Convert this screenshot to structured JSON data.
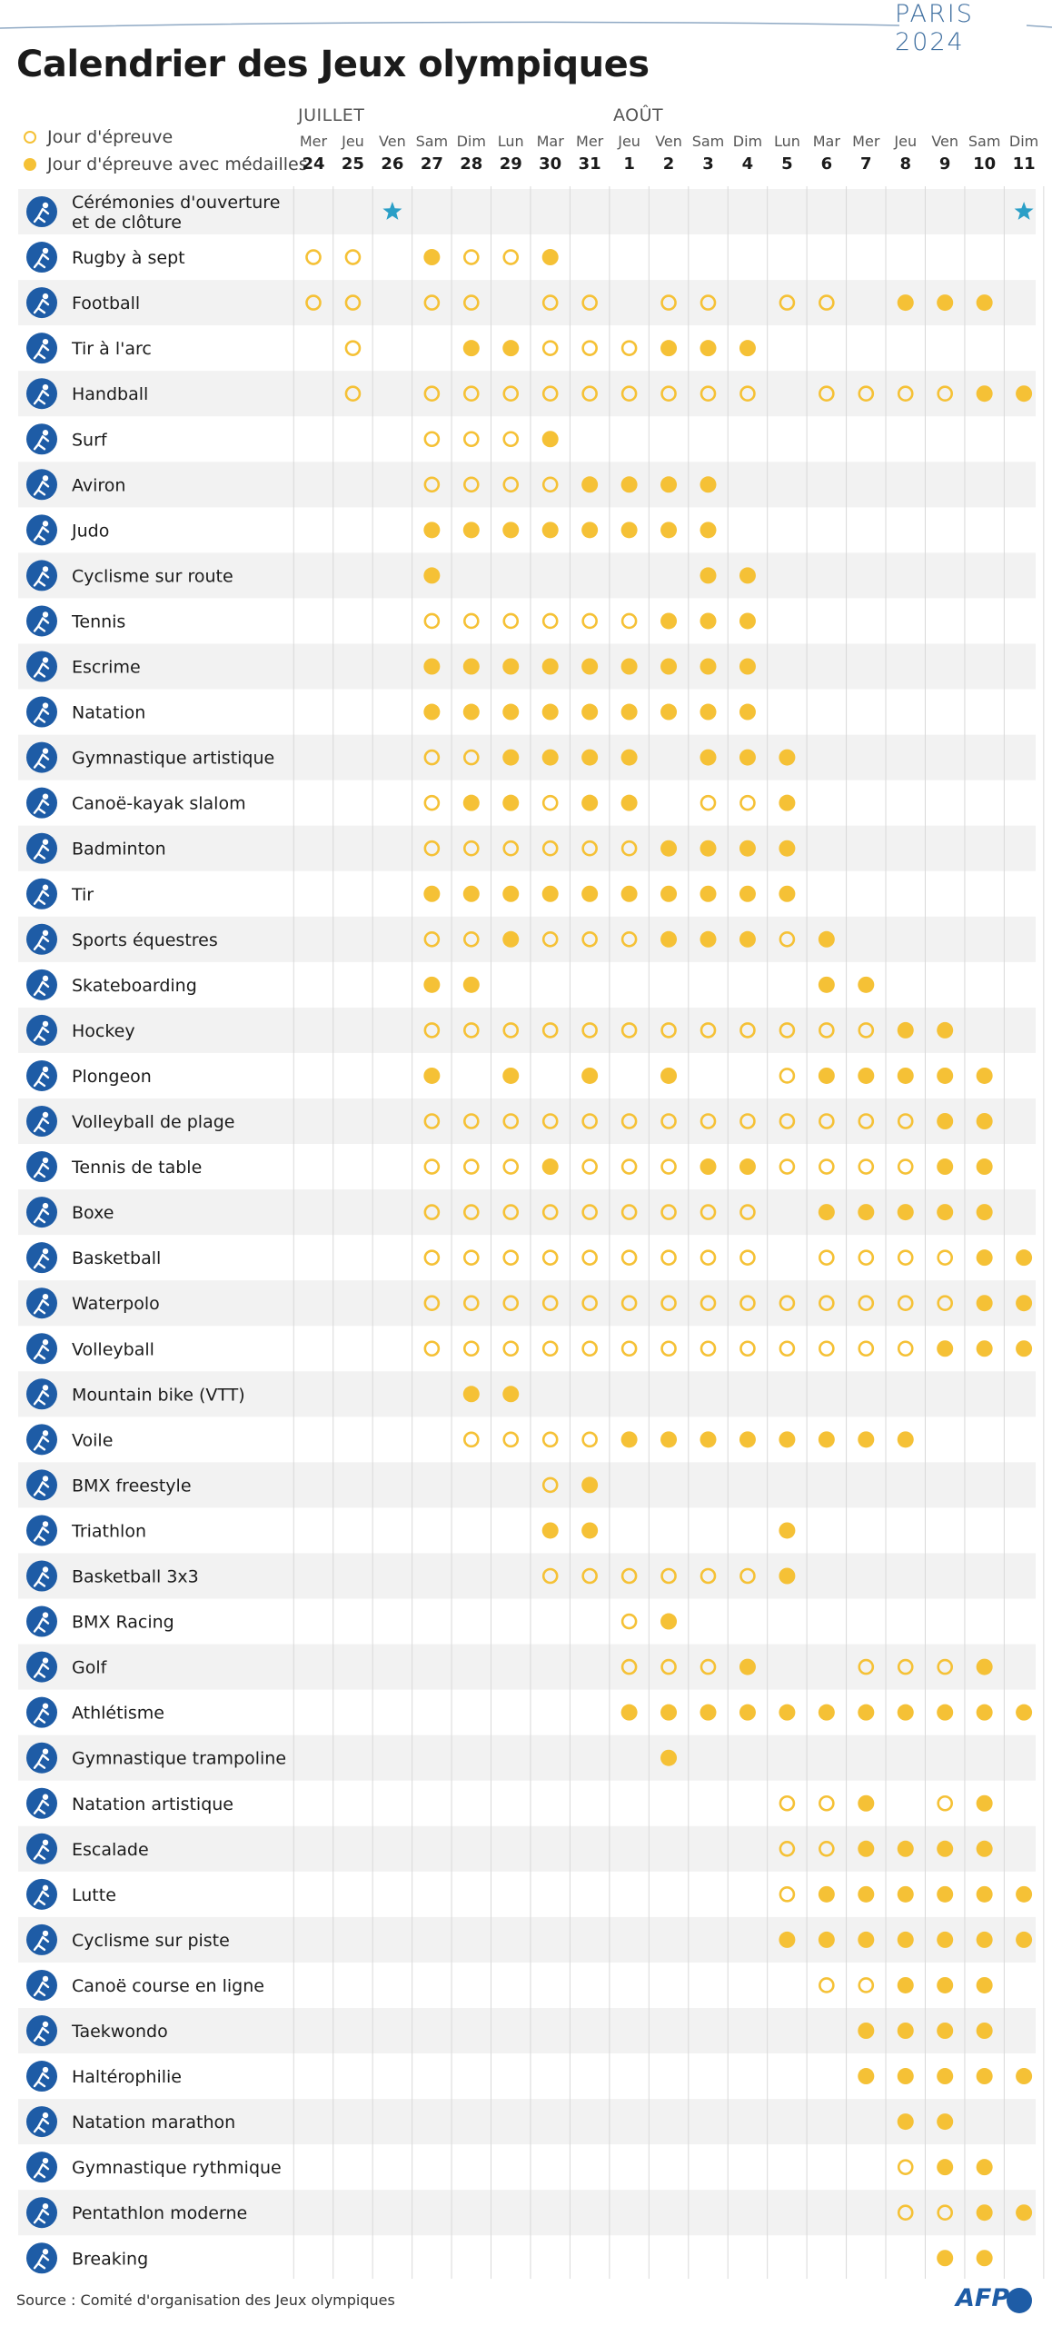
{
  "brand": "PARIS 2024",
  "title": "Calendrier des Jeux olympiques",
  "legend": {
    "event_day": "Jour d'épreuve",
    "medal_day": "Jour d'épreuve avec médailles"
  },
  "months": {
    "july": "JUILLET",
    "august": "AOÛT"
  },
  "source": "Source : Comité d'organisation des Jeux olympiques",
  "logo_text": "AFP",
  "colors": {
    "medal": "#f5c136",
    "star": "#2a9fc7",
    "icon": "#1e5ca6",
    "stripe": "#f2f2f2",
    "grid": "#d9d9d9"
  },
  "chart_data": {
    "type": "table",
    "encoding": {
      "0": "no event",
      "1": "event day (open circle)",
      "2": "medal day (filled circle)",
      "3": "ceremony (star)"
    },
    "days": [
      {
        "weekday": "Mer",
        "date": "24"
      },
      {
        "weekday": "Jeu",
        "date": "25"
      },
      {
        "weekday": "Ven",
        "date": "26"
      },
      {
        "weekday": "Sam",
        "date": "27"
      },
      {
        "weekday": "Dim",
        "date": "28"
      },
      {
        "weekday": "Lun",
        "date": "29"
      },
      {
        "weekday": "Mar",
        "date": "30"
      },
      {
        "weekday": "Mer",
        "date": "31"
      },
      {
        "weekday": "Jeu",
        "date": "1"
      },
      {
        "weekday": "Ven",
        "date": "2"
      },
      {
        "weekday": "Sam",
        "date": "3"
      },
      {
        "weekday": "Dim",
        "date": "4"
      },
      {
        "weekday": "Lun",
        "date": "5"
      },
      {
        "weekday": "Mar",
        "date": "6"
      },
      {
        "weekday": "Mer",
        "date": "7"
      },
      {
        "weekday": "Jeu",
        "date": "8"
      },
      {
        "weekday": "Ven",
        "date": "9"
      },
      {
        "weekday": "Sam",
        "date": "10"
      },
      {
        "weekday": "Dim",
        "date": "11"
      }
    ],
    "sports": [
      {
        "name": "Cérémonies d'ouverture et de clôture",
        "icon": "ceremony-icon",
        "schedule": [
          0,
          0,
          3,
          0,
          0,
          0,
          0,
          0,
          0,
          0,
          0,
          0,
          0,
          0,
          0,
          0,
          0,
          0,
          3
        ]
      },
      {
        "name": "Rugby à sept",
        "icon": "rugby-icon",
        "schedule": [
          1,
          1,
          0,
          2,
          1,
          1,
          2,
          0,
          0,
          0,
          0,
          0,
          0,
          0,
          0,
          0,
          0,
          0,
          0
        ]
      },
      {
        "name": "Football",
        "icon": "football-icon",
        "schedule": [
          1,
          1,
          0,
          1,
          1,
          0,
          1,
          1,
          0,
          1,
          1,
          0,
          1,
          1,
          0,
          2,
          2,
          2,
          0
        ]
      },
      {
        "name": "Tir à l'arc",
        "icon": "archery-icon",
        "schedule": [
          0,
          1,
          0,
          0,
          2,
          2,
          1,
          1,
          1,
          2,
          2,
          2,
          0,
          0,
          0,
          0,
          0,
          0,
          0
        ]
      },
      {
        "name": "Handball",
        "icon": "handball-icon",
        "schedule": [
          0,
          1,
          0,
          1,
          1,
          1,
          1,
          1,
          1,
          1,
          1,
          1,
          0,
          1,
          1,
          1,
          1,
          2,
          2
        ]
      },
      {
        "name": "Surf",
        "icon": "surf-icon",
        "schedule": [
          0,
          0,
          0,
          1,
          1,
          1,
          2,
          0,
          0,
          0,
          0,
          0,
          0,
          0,
          0,
          0,
          0,
          0,
          0
        ]
      },
      {
        "name": "Aviron",
        "icon": "rowing-icon",
        "schedule": [
          0,
          0,
          0,
          1,
          1,
          1,
          1,
          2,
          2,
          2,
          2,
          0,
          0,
          0,
          0,
          0,
          0,
          0,
          0
        ]
      },
      {
        "name": "Judo",
        "icon": "judo-icon",
        "schedule": [
          0,
          0,
          0,
          2,
          2,
          2,
          2,
          2,
          2,
          2,
          2,
          0,
          0,
          0,
          0,
          0,
          0,
          0,
          0
        ]
      },
      {
        "name": "Cyclisme sur route",
        "icon": "road-cycling-icon",
        "schedule": [
          0,
          0,
          0,
          2,
          0,
          0,
          0,
          0,
          0,
          0,
          2,
          2,
          0,
          0,
          0,
          0,
          0,
          0,
          0
        ]
      },
      {
        "name": "Tennis",
        "icon": "tennis-icon",
        "schedule": [
          0,
          0,
          0,
          1,
          1,
          1,
          1,
          1,
          1,
          2,
          2,
          2,
          0,
          0,
          0,
          0,
          0,
          0,
          0
        ]
      },
      {
        "name": "Escrime",
        "icon": "fencing-icon",
        "schedule": [
          0,
          0,
          0,
          2,
          2,
          2,
          2,
          2,
          2,
          2,
          2,
          2,
          0,
          0,
          0,
          0,
          0,
          0,
          0
        ]
      },
      {
        "name": "Natation",
        "icon": "swimming-icon",
        "schedule": [
          0,
          0,
          0,
          2,
          2,
          2,
          2,
          2,
          2,
          2,
          2,
          2,
          0,
          0,
          0,
          0,
          0,
          0,
          0
        ]
      },
      {
        "name": "Gymnastique artistique",
        "icon": "artistic-gymnastics-icon",
        "schedule": [
          0,
          0,
          0,
          1,
          1,
          2,
          2,
          2,
          2,
          0,
          2,
          2,
          2,
          0,
          0,
          0,
          0,
          0,
          0
        ]
      },
      {
        "name": "Canoë-kayak slalom",
        "icon": "canoe-slalom-icon",
        "schedule": [
          0,
          0,
          0,
          1,
          2,
          2,
          1,
          2,
          2,
          0,
          1,
          1,
          2,
          0,
          0,
          0,
          0,
          0,
          0
        ]
      },
      {
        "name": "Badminton",
        "icon": "badminton-icon",
        "schedule": [
          0,
          0,
          0,
          1,
          1,
          1,
          1,
          1,
          1,
          2,
          2,
          2,
          2,
          0,
          0,
          0,
          0,
          0,
          0
        ]
      },
      {
        "name": "Tir",
        "icon": "shooting-icon",
        "schedule": [
          0,
          0,
          0,
          2,
          2,
          2,
          2,
          2,
          2,
          2,
          2,
          2,
          2,
          0,
          0,
          0,
          0,
          0,
          0
        ]
      },
      {
        "name": "Sports équestres",
        "icon": "equestrian-icon",
        "schedule": [
          0,
          0,
          0,
          1,
          1,
          2,
          1,
          1,
          1,
          2,
          2,
          2,
          1,
          2,
          0,
          0,
          0,
          0,
          0
        ]
      },
      {
        "name": "Skateboarding",
        "icon": "skateboarding-icon",
        "schedule": [
          0,
          0,
          0,
          2,
          2,
          0,
          0,
          0,
          0,
          0,
          0,
          0,
          0,
          2,
          2,
          0,
          0,
          0,
          0
        ]
      },
      {
        "name": "Hockey",
        "icon": "hockey-icon",
        "schedule": [
          0,
          0,
          0,
          1,
          1,
          1,
          1,
          1,
          1,
          1,
          1,
          1,
          1,
          1,
          1,
          2,
          2,
          0,
          0
        ]
      },
      {
        "name": "Plongeon",
        "icon": "diving-icon",
        "schedule": [
          0,
          0,
          0,
          2,
          0,
          2,
          0,
          2,
          0,
          2,
          0,
          0,
          1,
          2,
          2,
          2,
          2,
          2,
          0
        ]
      },
      {
        "name": "Volleyball de plage",
        "icon": "beach-volleyball-icon",
        "schedule": [
          0,
          0,
          0,
          1,
          1,
          1,
          1,
          1,
          1,
          1,
          1,
          1,
          1,
          1,
          1,
          1,
          2,
          2,
          0
        ]
      },
      {
        "name": "Tennis de table",
        "icon": "table-tennis-icon",
        "schedule": [
          0,
          0,
          0,
          1,
          1,
          1,
          2,
          1,
          1,
          1,
          2,
          2,
          1,
          1,
          1,
          1,
          2,
          2,
          0
        ]
      },
      {
        "name": "Boxe",
        "icon": "boxing-icon",
        "schedule": [
          0,
          0,
          0,
          1,
          1,
          1,
          1,
          1,
          1,
          1,
          1,
          1,
          0,
          2,
          2,
          2,
          2,
          2,
          0
        ]
      },
      {
        "name": "Basketball",
        "icon": "basketball-icon",
        "schedule": [
          0,
          0,
          0,
          1,
          1,
          1,
          1,
          1,
          1,
          1,
          1,
          1,
          0,
          1,
          1,
          1,
          1,
          2,
          2
        ]
      },
      {
        "name": "Waterpolo",
        "icon": "water-polo-icon",
        "schedule": [
          0,
          0,
          0,
          1,
          1,
          1,
          1,
          1,
          1,
          1,
          1,
          1,
          1,
          1,
          1,
          1,
          1,
          2,
          2
        ]
      },
      {
        "name": "Volleyball",
        "icon": "volleyball-icon",
        "schedule": [
          0,
          0,
          0,
          1,
          1,
          1,
          1,
          1,
          1,
          1,
          1,
          1,
          1,
          1,
          1,
          1,
          2,
          2,
          2
        ]
      },
      {
        "name": "Mountain bike (VTT)",
        "icon": "mountain-bike-icon",
        "schedule": [
          0,
          0,
          0,
          0,
          2,
          2,
          0,
          0,
          0,
          0,
          0,
          0,
          0,
          0,
          0,
          0,
          0,
          0,
          0
        ]
      },
      {
        "name": "Voile",
        "icon": "sailing-icon",
        "schedule": [
          0,
          0,
          0,
          0,
          1,
          1,
          1,
          1,
          2,
          2,
          2,
          2,
          2,
          2,
          2,
          2,
          0,
          0,
          0
        ]
      },
      {
        "name": "BMX freestyle",
        "icon": "bmx-freestyle-icon",
        "schedule": [
          0,
          0,
          0,
          0,
          0,
          0,
          1,
          2,
          0,
          0,
          0,
          0,
          0,
          0,
          0,
          0,
          0,
          0,
          0
        ]
      },
      {
        "name": "Triathlon",
        "icon": "triathlon-icon",
        "schedule": [
          0,
          0,
          0,
          0,
          0,
          0,
          2,
          2,
          0,
          0,
          0,
          0,
          2,
          0,
          0,
          0,
          0,
          0,
          0
        ]
      },
      {
        "name": "Basketball 3x3",
        "icon": "basketball-3x3-icon",
        "schedule": [
          0,
          0,
          0,
          0,
          0,
          0,
          1,
          1,
          1,
          1,
          1,
          1,
          2,
          0,
          0,
          0,
          0,
          0,
          0
        ]
      },
      {
        "name": "BMX Racing",
        "icon": "bmx-racing-icon",
        "schedule": [
          0,
          0,
          0,
          0,
          0,
          0,
          0,
          0,
          1,
          2,
          0,
          0,
          0,
          0,
          0,
          0,
          0,
          0,
          0
        ]
      },
      {
        "name": "Golf",
        "icon": "golf-icon",
        "schedule": [
          0,
          0,
          0,
          0,
          0,
          0,
          0,
          0,
          1,
          1,
          1,
          2,
          0,
          0,
          1,
          1,
          1,
          2,
          0
        ]
      },
      {
        "name": "Athlétisme",
        "icon": "athletics-icon",
        "schedule": [
          0,
          0,
          0,
          0,
          0,
          0,
          0,
          0,
          2,
          2,
          2,
          2,
          2,
          2,
          2,
          2,
          2,
          2,
          2
        ]
      },
      {
        "name": "Gymnastique trampoline",
        "icon": "trampoline-icon",
        "schedule": [
          0,
          0,
          0,
          0,
          0,
          0,
          0,
          0,
          0,
          2,
          0,
          0,
          0,
          0,
          0,
          0,
          0,
          0,
          0
        ]
      },
      {
        "name": "Natation artistique",
        "icon": "artistic-swimming-icon",
        "schedule": [
          0,
          0,
          0,
          0,
          0,
          0,
          0,
          0,
          0,
          0,
          0,
          0,
          1,
          1,
          2,
          0,
          1,
          2,
          0
        ]
      },
      {
        "name": "Escalade",
        "icon": "climbing-icon",
        "schedule": [
          0,
          0,
          0,
          0,
          0,
          0,
          0,
          0,
          0,
          0,
          0,
          0,
          1,
          1,
          2,
          2,
          2,
          2,
          0
        ]
      },
      {
        "name": "Lutte",
        "icon": "wrestling-icon",
        "schedule": [
          0,
          0,
          0,
          0,
          0,
          0,
          0,
          0,
          0,
          0,
          0,
          0,
          1,
          2,
          2,
          2,
          2,
          2,
          2
        ]
      },
      {
        "name": "Cyclisme sur piste",
        "icon": "track-cycling-icon",
        "schedule": [
          0,
          0,
          0,
          0,
          0,
          0,
          0,
          0,
          0,
          0,
          0,
          0,
          2,
          2,
          2,
          2,
          2,
          2,
          2
        ]
      },
      {
        "name": "Canoë course en ligne",
        "icon": "canoe-sprint-icon",
        "schedule": [
          0,
          0,
          0,
          0,
          0,
          0,
          0,
          0,
          0,
          0,
          0,
          0,
          0,
          1,
          1,
          2,
          2,
          2,
          0
        ]
      },
      {
        "name": "Taekwondo",
        "icon": "taekwondo-icon",
        "schedule": [
          0,
          0,
          0,
          0,
          0,
          0,
          0,
          0,
          0,
          0,
          0,
          0,
          0,
          0,
          2,
          2,
          2,
          2,
          0
        ]
      },
      {
        "name": "Haltérophilie",
        "icon": "weightlifting-icon",
        "schedule": [
          0,
          0,
          0,
          0,
          0,
          0,
          0,
          0,
          0,
          0,
          0,
          0,
          0,
          0,
          2,
          2,
          2,
          2,
          2
        ]
      },
      {
        "name": "Natation marathon",
        "icon": "marathon-swimming-icon",
        "schedule": [
          0,
          0,
          0,
          0,
          0,
          0,
          0,
          0,
          0,
          0,
          0,
          0,
          0,
          0,
          0,
          2,
          2,
          0,
          0
        ]
      },
      {
        "name": "Gymnastique rythmique",
        "icon": "rhythmic-gymnastics-icon",
        "schedule": [
          0,
          0,
          0,
          0,
          0,
          0,
          0,
          0,
          0,
          0,
          0,
          0,
          0,
          0,
          0,
          1,
          2,
          2,
          0
        ]
      },
      {
        "name": "Pentathlon moderne",
        "icon": "modern-pentathlon-icon",
        "schedule": [
          0,
          0,
          0,
          0,
          0,
          0,
          0,
          0,
          0,
          0,
          0,
          0,
          0,
          0,
          0,
          1,
          1,
          2,
          2
        ]
      },
      {
        "name": "Breaking",
        "icon": "breaking-icon",
        "schedule": [
          0,
          0,
          0,
          0,
          0,
          0,
          0,
          0,
          0,
          0,
          0,
          0,
          0,
          0,
          0,
          0,
          2,
          2,
          0
        ]
      }
    ]
  }
}
